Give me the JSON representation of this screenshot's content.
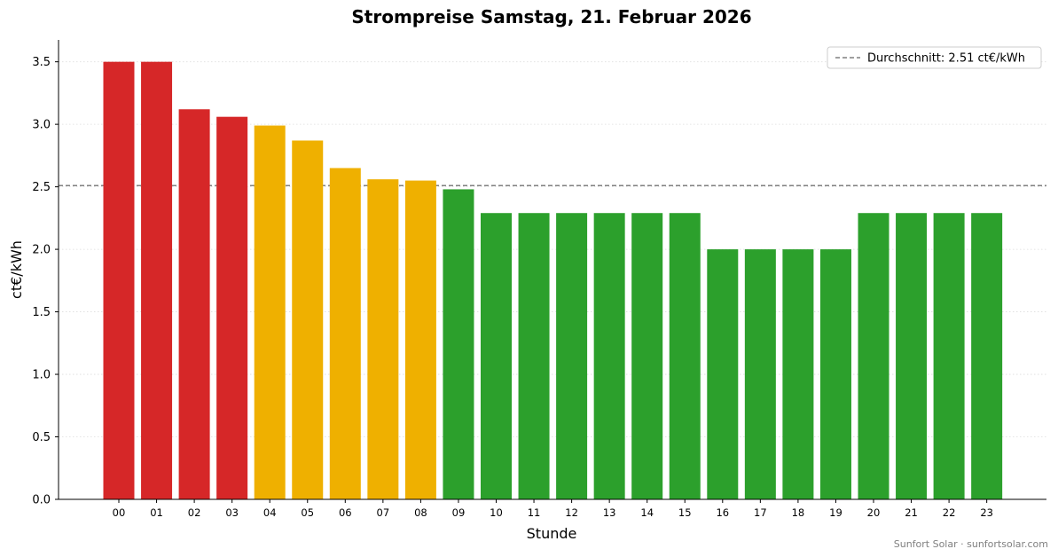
{
  "chart_data": {
    "type": "bar",
    "title": "Strompreise Samstag, 21. Februar 2026",
    "xlabel": "Stunde",
    "ylabel": "ct€/kWh",
    "ylim": [
      0,
      3.675
    ],
    "yticks": [
      "0.0",
      "0.5",
      "1.0",
      "1.5",
      "2.0",
      "2.5",
      "3.0",
      "3.5"
    ],
    "grid": "horizontal dotted",
    "categories": [
      "00",
      "01",
      "02",
      "03",
      "04",
      "05",
      "06",
      "07",
      "08",
      "09",
      "10",
      "11",
      "12",
      "13",
      "14",
      "15",
      "16",
      "17",
      "18",
      "19",
      "20",
      "21",
      "22",
      "23"
    ],
    "values": [
      3.5,
      3.5,
      3.12,
      3.06,
      2.99,
      2.87,
      2.65,
      2.56,
      2.55,
      2.48,
      2.29,
      2.29,
      2.29,
      2.29,
      2.29,
      2.29,
      2.0,
      2.0,
      2.0,
      2.0,
      2.29,
      2.29,
      2.29,
      2.29
    ],
    "bar_colors": [
      "#d62728",
      "#d62728",
      "#d62728",
      "#d62728",
      "#efb000",
      "#efb000",
      "#efb000",
      "#efb000",
      "#efb000",
      "#2ca02c",
      "#2ca02c",
      "#2ca02c",
      "#2ca02c",
      "#2ca02c",
      "#2ca02c",
      "#2ca02c",
      "#2ca02c",
      "#2ca02c",
      "#2ca02c",
      "#2ca02c",
      "#2ca02c",
      "#2ca02c",
      "#2ca02c",
      "#2ca02c"
    ],
    "average": {
      "value": 2.51,
      "label": "Durchschnitt: 2.51 ct€/kWh",
      "color": "#808080",
      "style": "dashed"
    },
    "legend_position": "top-right"
  },
  "footer": "Sunfort Solar · sunfortsolar.com"
}
